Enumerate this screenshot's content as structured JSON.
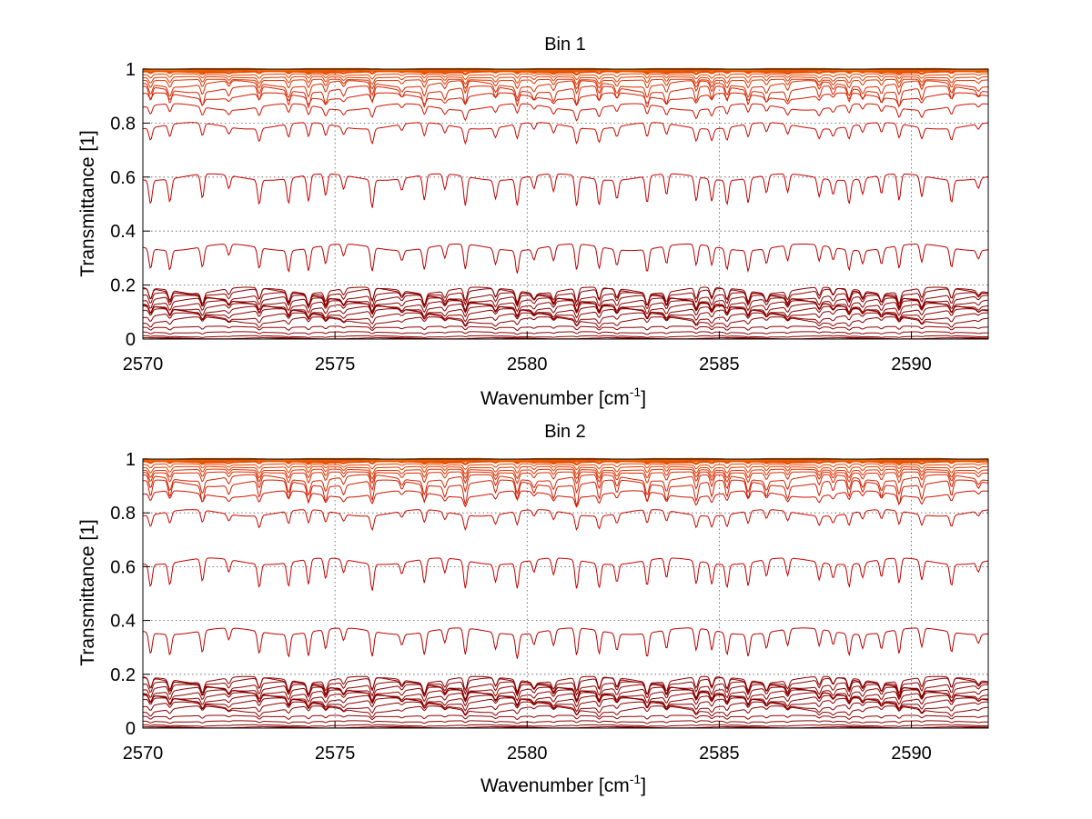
{
  "chart_data": [
    {
      "type": "line",
      "title": "Bin 1",
      "xlabel_main": "Wavenumber [cm",
      "xlabel_sup": "-1",
      "xlabel_end": "]",
      "ylabel": "Transmittance [1]",
      "xlim": [
        2570,
        2592
      ],
      "ylim": [
        0,
        1
      ],
      "xticks": [
        2570,
        2575,
        2580,
        2585,
        2590
      ],
      "yticks": [
        0,
        0.2,
        0.4,
        0.6,
        0.8,
        1
      ],
      "xtick_labels": [
        "2570",
        "2575",
        "2580",
        "2585",
        "2590"
      ],
      "ytick_labels": [
        "0",
        "0.2",
        "0.4",
        "0.6",
        "0.8",
        "1"
      ],
      "grid": true,
      "series_levels": [
        0.0,
        0.003,
        0.01,
        0.025,
        0.045,
        0.07,
        0.085,
        0.1,
        0.11,
        0.12,
        0.13,
        0.14,
        0.15,
        0.16,
        0.175,
        0.18,
        0.34,
        0.6,
        0.79,
        0.86,
        0.9,
        0.925,
        0.945,
        0.96,
        0.97,
        0.98,
        0.99,
        0.995,
        0.998,
        1.0
      ],
      "series_colors": [
        "#8b0000",
        "#8b0000",
        "#8b0000",
        "#8b0000",
        "#8b0000",
        "#8b0000",
        "#8b0000",
        "#8b0000",
        "#8b0000",
        "#8b0000",
        "#8b0000",
        "#8b0000",
        "#8b0000",
        "#8b0000",
        "#8b0000",
        "#8b0000",
        "#b80000",
        "#c40000",
        "#c80a00",
        "#cc1400",
        "#d01c00",
        "#d42400",
        "#d82c00",
        "#dc3400",
        "#e03c00",
        "#e44400",
        "#e84c00",
        "#ec5400",
        "#f06000",
        "#f47000"
      ]
    },
    {
      "type": "line",
      "title": "Bin 2",
      "xlabel_main": "Wavenumber [cm",
      "xlabel_sup": "-1",
      "xlabel_end": "]",
      "ylabel": "Transmittance [1]",
      "xlim": [
        2570,
        2592
      ],
      "ylim": [
        0,
        1
      ],
      "xticks": [
        2570,
        2575,
        2580,
        2585,
        2590
      ],
      "yticks": [
        0,
        0.2,
        0.4,
        0.6,
        0.8,
        1
      ],
      "xtick_labels": [
        "2570",
        "2575",
        "2580",
        "2585",
        "2590"
      ],
      "ytick_labels": [
        "0",
        "0.2",
        "0.4",
        "0.6",
        "0.8",
        "1"
      ],
      "grid": true,
      "series_levels": [
        0.0,
        0.003,
        0.01,
        0.025,
        0.045,
        0.07,
        0.085,
        0.1,
        0.11,
        0.12,
        0.13,
        0.14,
        0.15,
        0.16,
        0.175,
        0.18,
        0.36,
        0.62,
        0.8,
        0.87,
        0.91,
        0.93,
        0.95,
        0.96,
        0.97,
        0.98,
        0.99,
        0.995,
        0.998,
        1.0
      ],
      "series_colors": [
        "#8b0000",
        "#8b0000",
        "#8b0000",
        "#8b0000",
        "#8b0000",
        "#8b0000",
        "#8b0000",
        "#8b0000",
        "#8b0000",
        "#8b0000",
        "#8b0000",
        "#8b0000",
        "#8b0000",
        "#8b0000",
        "#8b0000",
        "#8b0000",
        "#b80000",
        "#c40000",
        "#c80a00",
        "#cc1400",
        "#d01c00",
        "#d42400",
        "#d82c00",
        "#dc3400",
        "#e03c00",
        "#e44400",
        "#e84c00",
        "#ec5400",
        "#f06000",
        "#f47000"
      ]
    }
  ]
}
